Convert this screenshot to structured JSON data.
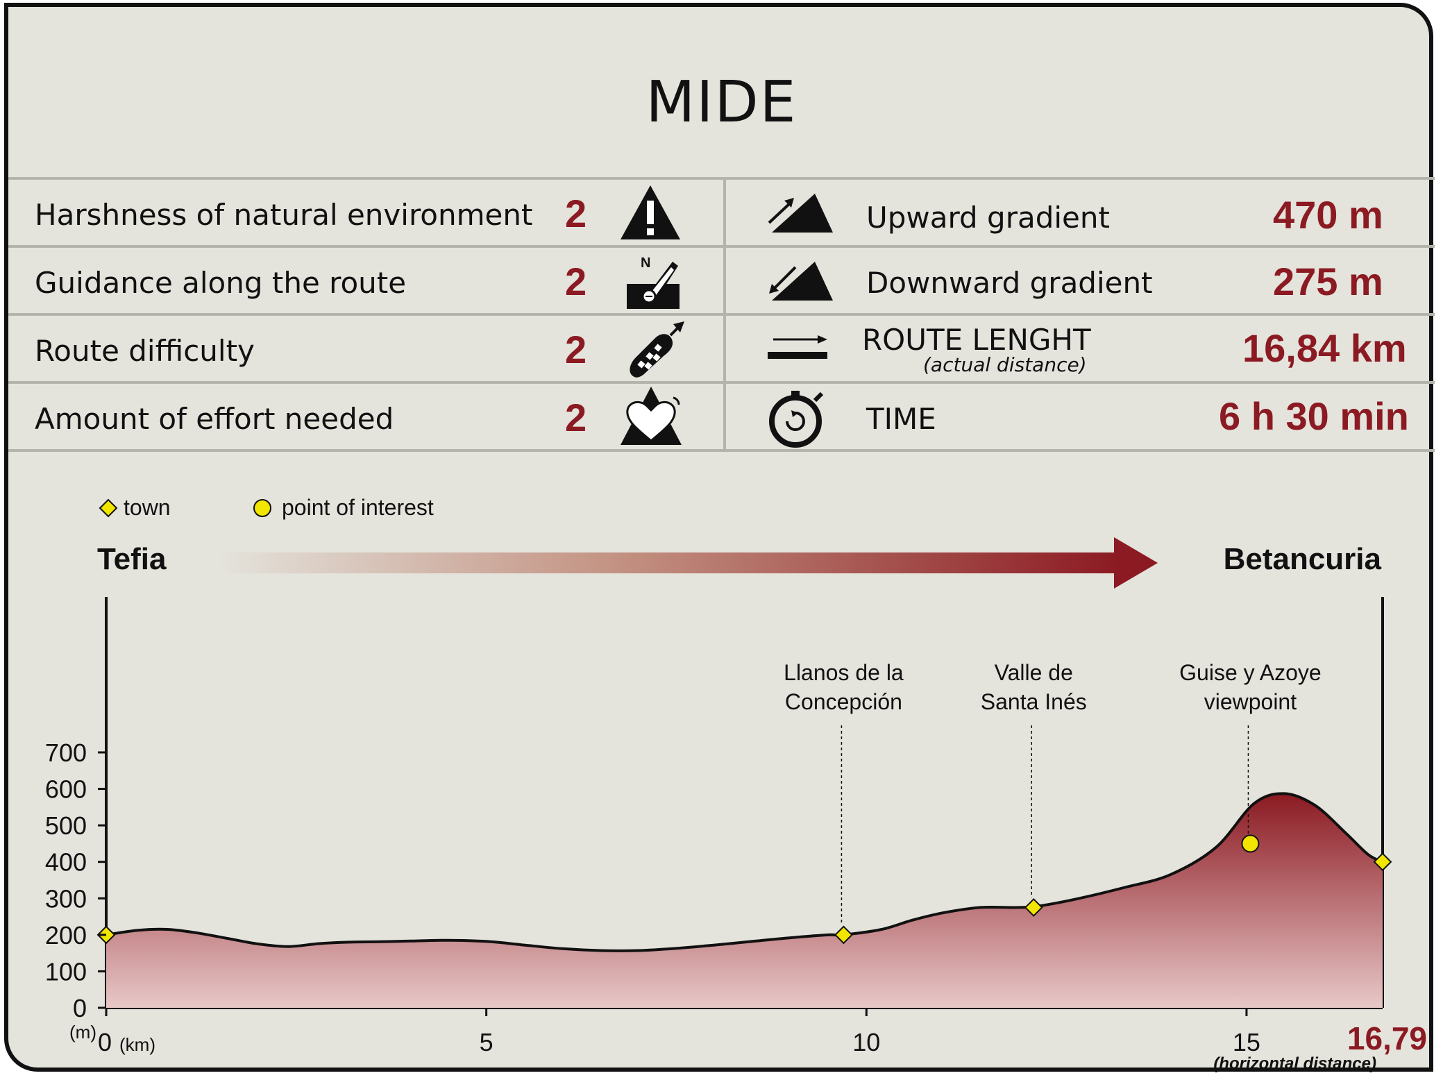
{
  "mide": {
    "title": "MIDE",
    "left_rows": [
      {
        "label": "Harshness of natural environment",
        "score": "2",
        "icon": "warning-triangle-icon"
      },
      {
        "label": "Guidance along the route",
        "score": "2",
        "icon": "compass-map-icon"
      },
      {
        "label": "Route difficulty",
        "score": "2",
        "icon": "footprint-icon"
      },
      {
        "label": "Amount of effort needed",
        "score": "2",
        "icon": "heart-mountain-icon"
      }
    ],
    "right_rows": [
      {
        "label": "Upward gradient",
        "value": "470 m",
        "icon": "upward-gradient-icon"
      },
      {
        "label": "Downward gradient",
        "value": "275 m",
        "icon": "downward-gradient-icon"
      },
      {
        "label": "ROUTE LENGHT",
        "sublabel": "(actual distance)",
        "value": "16,84 km",
        "icon": "route-length-icon"
      },
      {
        "label": "TIME",
        "value": "6 h 30 min",
        "icon": "stopwatch-icon"
      }
    ]
  },
  "legend": {
    "town": "town",
    "poi": "point of interest"
  },
  "route": {
    "start": "Tefia",
    "end": "Betancuria"
  },
  "axis": {
    "y_unit": "(m)",
    "x_unit": "(km)",
    "end_value": "16,79",
    "end_note": "(horizontal distance)"
  },
  "colors": {
    "accent": "#8b1a22",
    "profile_top": "#8b1a22",
    "profile_bottom": "#e8c8c8",
    "marker": "#f2e600"
  },
  "chart_data": {
    "type": "area",
    "xlabel": "(km)",
    "ylabel": "(m)",
    "xlim": [
      0,
      16.79
    ],
    "ylim": [
      0,
      700
    ],
    "x_ticks": [
      0,
      5,
      10,
      15
    ],
    "y_ticks": [
      0,
      100,
      200,
      300,
      400,
      500,
      600,
      700
    ],
    "grid": false,
    "series": [
      {
        "x": [
          0,
          0.4,
          0.8,
          1.2,
          1.6,
          2.0,
          2.4,
          2.8,
          3.2,
          3.6,
          4.0,
          4.5,
          5.0,
          5.5,
          6.0,
          6.5,
          7.0,
          7.5,
          8.0,
          8.5,
          9.0,
          9.5,
          9.7,
          10.2,
          10.6,
          11.0,
          11.5,
          12.0,
          12.3,
          12.8,
          13.4,
          14.0,
          14.6,
          15.1,
          15.5,
          15.9,
          16.3,
          16.6,
          16.79
        ],
        "y": [
          200,
          212,
          215,
          205,
          190,
          175,
          168,
          176,
          180,
          181,
          183,
          185,
          182,
          172,
          162,
          157,
          157,
          163,
          172,
          182,
          192,
          200,
          200,
          215,
          240,
          260,
          275,
          275,
          280,
          300,
          330,
          365,
          440,
          560,
          587,
          555,
          480,
          420,
          400
        ]
      }
    ],
    "markers": [
      {
        "type": "town",
        "x": 0,
        "y": 200
      },
      {
        "type": "town",
        "x": 9.7,
        "y": 200,
        "label_lines": [
          "Llanos de la",
          "Concepción"
        ]
      },
      {
        "type": "town",
        "x": 12.2,
        "y": 275,
        "label_lines": [
          "Valle de",
          "Santa Inés"
        ]
      },
      {
        "type": "poi",
        "x": 15.05,
        "y": 450,
        "label_lines": [
          "Guise y Azoye",
          "viewpoint"
        ]
      },
      {
        "type": "town",
        "x": 16.79,
        "y": 400
      }
    ]
  }
}
